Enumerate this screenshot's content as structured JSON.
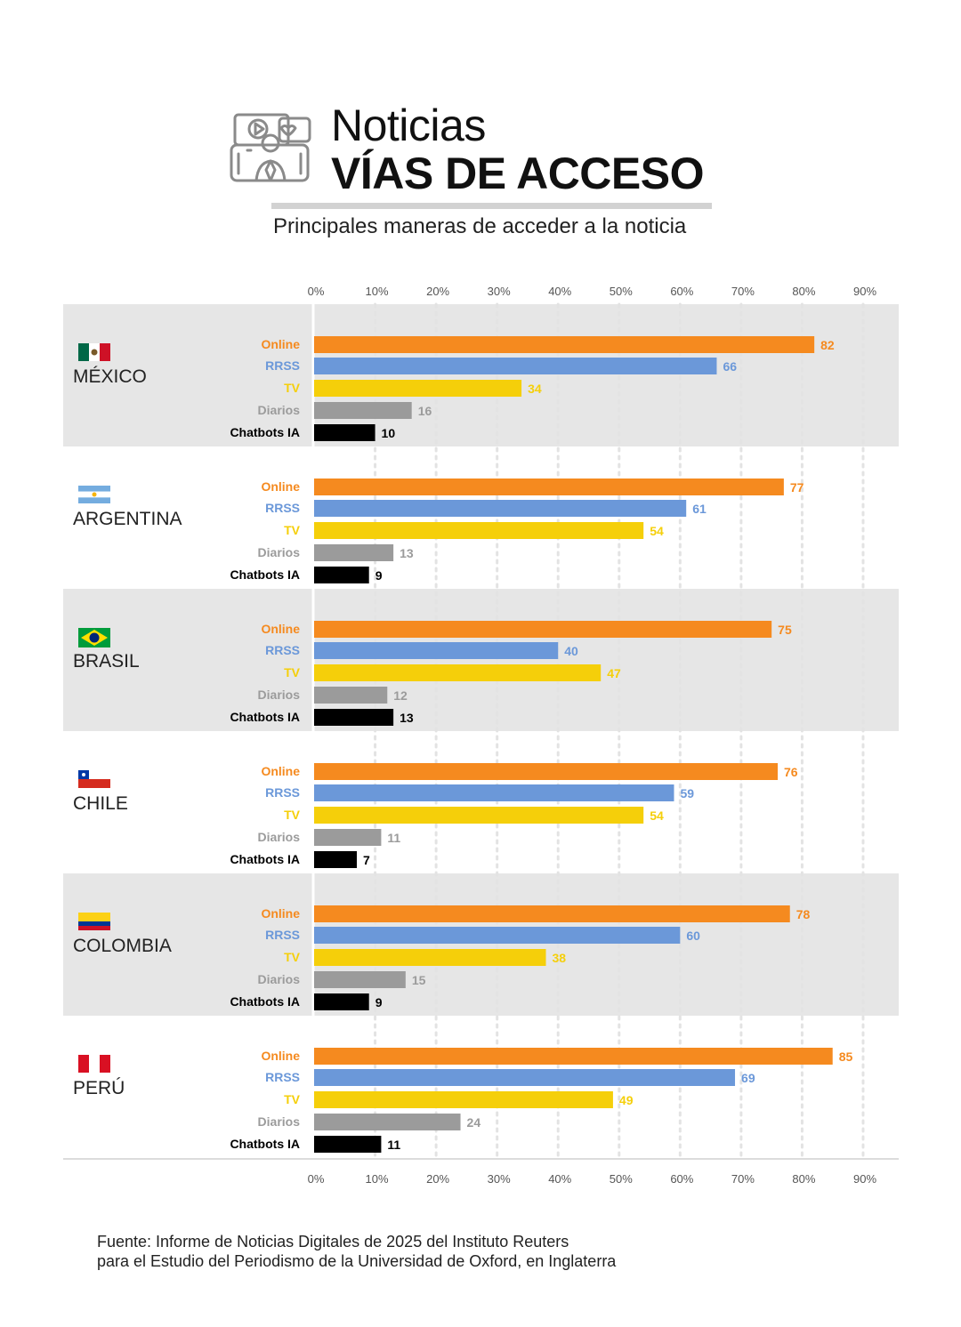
{
  "header": {
    "title": "Noticias",
    "subtitle": "VÍAS DE ACCESO",
    "description": "Principales maneras de acceder a la noticia",
    "icon": "news-media-icon"
  },
  "footnote": {
    "line1": "Fuente: Informe de Noticias Digitales de 2025 del Instituto Reuters",
    "line2": "para el Estudio del Periodismo de la Universidad de Oxford, en Inglaterra"
  },
  "colors": {
    "Online": "#f58a1f",
    "RRSS": "#6b98d9",
    "TV": "#f5cf0a",
    "Diarios": "#9b9b9b",
    "Chatbots IA": "#000000",
    "panel_shade": "#e6e6e6"
  },
  "chart_data": {
    "type": "bar",
    "orientation": "horizontal",
    "unit": "%",
    "categories": [
      "Online",
      "RRSS",
      "TV",
      "Diarios",
      "Chatbots IA"
    ],
    "x_ticks": [
      "0%",
      "10%",
      "20%",
      "30%",
      "40%",
      "50%",
      "60%",
      "70%",
      "80%",
      "90%"
    ],
    "xlim": [
      0,
      90
    ],
    "grid": "vertical dotted",
    "groups": [
      {
        "country": "MÉXICO",
        "flag": "mexico-flag-icon",
        "values": [
          82,
          66,
          34,
          16,
          10
        ]
      },
      {
        "country": "ARGENTINA",
        "flag": "argentina-flag-icon",
        "values": [
          77,
          61,
          54,
          13,
          9
        ]
      },
      {
        "country": "BRASIL",
        "flag": "brazil-flag-icon",
        "values": [
          75,
          40,
          47,
          12,
          13
        ]
      },
      {
        "country": "CHILE",
        "flag": "chile-flag-icon",
        "values": [
          76,
          59,
          54,
          11,
          7
        ]
      },
      {
        "country": "COLOMBIA",
        "flag": "colombia-flag-icon",
        "values": [
          78,
          60,
          38,
          15,
          9
        ]
      },
      {
        "country": "PERÚ",
        "flag": "peru-flag-icon",
        "values": [
          85,
          69,
          49,
          24,
          11
        ]
      }
    ]
  }
}
